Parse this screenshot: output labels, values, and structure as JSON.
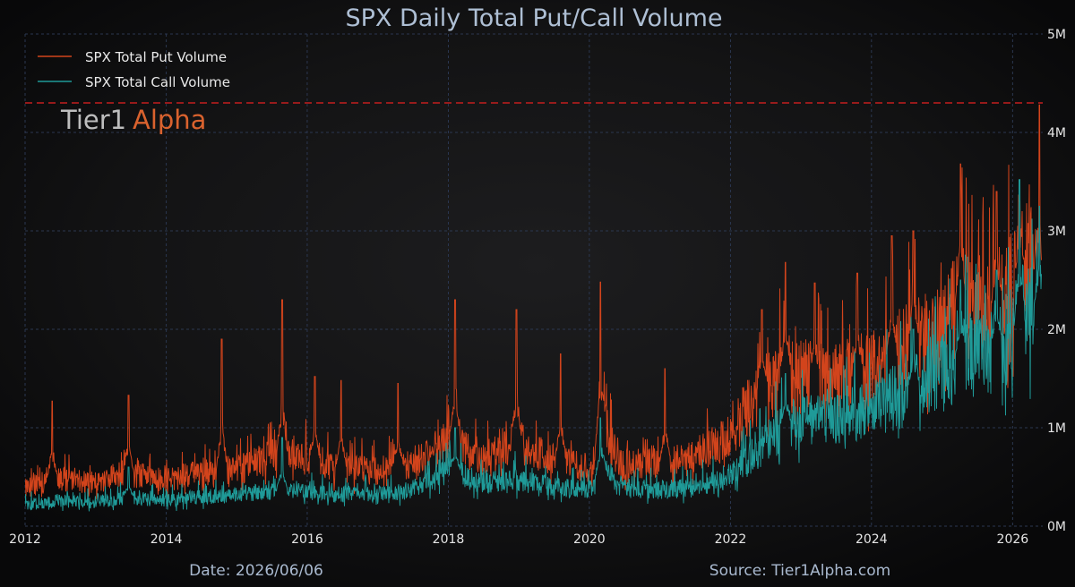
{
  "page": {
    "date_label": "Date: 2026/06/06",
    "source_label": "Source: Tier1Alpha.com",
    "watermark": {
      "part1": "Tier1",
      "part2": "Alpha"
    }
  },
  "colors": {
    "background": "#0a0a0b",
    "put": "#d2441c",
    "call": "#1f9a98",
    "reference_line": "#c41e1e",
    "grid": "#2b3750"
  },
  "chart_data": {
    "type": "line",
    "title": "SPX Daily Total Put/Call Volume",
    "xlabel": "",
    "ylabel": "",
    "x_range": [
      "2012-01-01",
      "2026-06-06"
    ],
    "ylim": [
      0,
      5000000
    ],
    "grid": true,
    "legend_position": "top-left",
    "reference_line": {
      "y": 4300000,
      "style": "dashed"
    },
    "x_ticks": [
      "2012",
      "2014",
      "2016",
      "2018",
      "2020",
      "2022",
      "2024",
      "2026"
    ],
    "y_ticks": [
      {
        "value": 0,
        "label": "0M"
      },
      {
        "value": 1000000,
        "label": "1M"
      },
      {
        "value": 2000000,
        "label": "2M"
      },
      {
        "value": 3000000,
        "label": "3M"
      },
      {
        "value": 4000000,
        "label": "4M"
      },
      {
        "value": 5000000,
        "label": "5M"
      }
    ],
    "series": [
      {
        "name": "SPX Total Put Volume",
        "values": [
          [
            "2012-01-01",
            400000
          ],
          [
            "2012-06-01",
            500000
          ],
          [
            "2013-01-01",
            450000
          ],
          [
            "2013-06-01",
            560000
          ],
          [
            "2014-01-01",
            480000
          ],
          [
            "2014-06-01",
            550000
          ],
          [
            "2015-01-01",
            600000
          ],
          [
            "2015-08-15",
            750000
          ],
          [
            "2016-01-15",
            700000
          ],
          [
            "2016-06-01",
            600000
          ],
          [
            "2017-01-01",
            580000
          ],
          [
            "2017-06-01",
            620000
          ],
          [
            "2018-02-05",
            950000
          ],
          [
            "2018-06-01",
            700000
          ],
          [
            "2018-12-15",
            900000
          ],
          [
            "2019-06-01",
            720000
          ],
          [
            "2020-01-15",
            600000
          ],
          [
            "2020-03-15",
            1100000
          ],
          [
            "2020-06-01",
            650000
          ],
          [
            "2021-01-01",
            650000
          ],
          [
            "2021-06-01",
            700000
          ],
          [
            "2021-12-01",
            900000
          ],
          [
            "2022-06-01",
            1400000
          ],
          [
            "2022-10-01",
            1600000
          ],
          [
            "2023-03-15",
            1550000
          ],
          [
            "2023-06-01",
            1500000
          ],
          [
            "2024-01-01",
            1650000
          ],
          [
            "2024-08-05",
            1900000
          ],
          [
            "2025-01-01",
            2000000
          ],
          [
            "2025-04-07",
            2400000
          ],
          [
            "2025-09-01",
            2200000
          ],
          [
            "2026-01-01",
            2500000
          ],
          [
            "2026-03-15",
            2700000
          ],
          [
            "2026-06-01",
            2400000
          ]
        ],
        "spikes": [
          [
            "2012-05-20",
            1270000
          ],
          [
            "2013-06-20",
            1330000
          ],
          [
            "2014-10-15",
            1900000
          ],
          [
            "2015-08-24",
            2300000
          ],
          [
            "2016-02-10",
            1520000
          ],
          [
            "2016-06-24",
            1480000
          ],
          [
            "2017-04-15",
            1450000
          ],
          [
            "2018-02-05",
            2300000
          ],
          [
            "2018-12-20",
            2200000
          ],
          [
            "2019-08-05",
            1750000
          ],
          [
            "2020-02-27",
            2480000
          ],
          [
            "2021-01-27",
            1600000
          ],
          [
            "2022-06-13",
            2200000
          ],
          [
            "2022-10-13",
            2680000
          ],
          [
            "2023-03-13",
            2470000
          ],
          [
            "2023-10-20",
            2570000
          ],
          [
            "2024-04-15",
            2950000
          ],
          [
            "2024-08-05",
            3000000
          ],
          [
            "2025-04-07",
            3680000
          ],
          [
            "2025-10-10",
            3400000
          ],
          [
            "2026-02-05",
            3300000
          ],
          [
            "2026-05-20",
            4280000
          ]
        ]
      },
      {
        "name": "SPX Total Call Volume",
        "values": [
          [
            "2012-01-01",
            220000
          ],
          [
            "2012-06-01",
            260000
          ],
          [
            "2013-01-01",
            250000
          ],
          [
            "2013-06-01",
            300000
          ],
          [
            "2014-01-01",
            270000
          ],
          [
            "2014-06-01",
            300000
          ],
          [
            "2015-01-01",
            330000
          ],
          [
            "2015-08-15",
            380000
          ],
          [
            "2016-01-15",
            360000
          ],
          [
            "2016-06-01",
            330000
          ],
          [
            "2017-01-01",
            340000
          ],
          [
            "2017-06-01",
            360000
          ],
          [
            "2018-02-05",
            600000
          ],
          [
            "2018-06-01",
            450000
          ],
          [
            "2018-12-15",
            500000
          ],
          [
            "2019-06-01",
            420000
          ],
          [
            "2020-01-15",
            380000
          ],
          [
            "2020-03-15",
            650000
          ],
          [
            "2020-06-01",
            400000
          ],
          [
            "2021-01-01",
            380000
          ],
          [
            "2021-06-01",
            400000
          ],
          [
            "2021-12-01",
            500000
          ],
          [
            "2022-06-01",
            800000
          ],
          [
            "2022-10-01",
            1050000
          ],
          [
            "2023-03-15",
            1100000
          ],
          [
            "2023-06-01",
            1150000
          ],
          [
            "2024-01-01",
            1200000
          ],
          [
            "2024-08-05",
            1450000
          ],
          [
            "2025-01-01",
            1600000
          ],
          [
            "2025-04-07",
            1800000
          ],
          [
            "2025-09-01",
            1850000
          ],
          [
            "2026-01-01",
            2000000
          ],
          [
            "2026-03-15",
            2300000
          ],
          [
            "2026-06-01",
            2200000
          ]
        ],
        "spikes": [
          [
            "2013-06-20",
            600000
          ],
          [
            "2015-08-24",
            900000
          ],
          [
            "2018-02-05",
            1000000
          ],
          [
            "2020-02-27",
            1100000
          ],
          [
            "2022-10-13",
            1550000
          ],
          [
            "2024-08-05",
            2000000
          ],
          [
            "2025-04-07",
            2500000
          ],
          [
            "2025-10-10",
            2600000
          ],
          [
            "2026-02-05",
            3520000
          ],
          [
            "2026-05-20",
            3250000
          ]
        ]
      }
    ]
  }
}
